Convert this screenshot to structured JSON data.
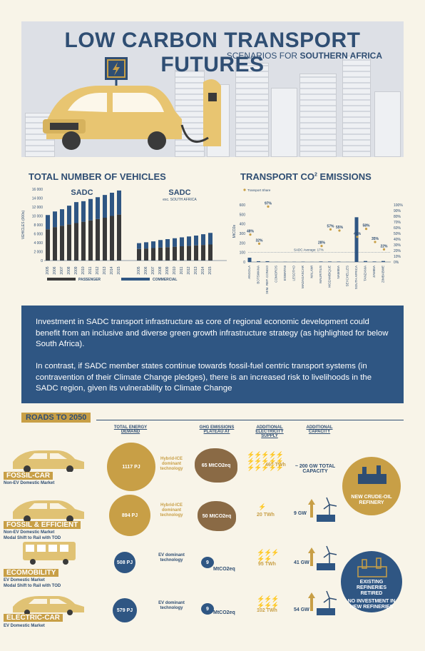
{
  "header": {
    "title": "LOW CARBON TRANSPORT FUTURES",
    "subtitle_prefix": "SCENARIOS FOR ",
    "subtitle_bold": "SOUTHERN AFRICA"
  },
  "vehicles": {
    "title": "TOTAL NUMBER OF VEHICLES",
    "ylabel": "VEHICLES (000s)",
    "yticks": [
      "16 000",
      "14 000",
      "12 000",
      "10 000",
      "8 000",
      "6 000",
      "4 000",
      "2 000",
      "0"
    ],
    "legend_passenger": "PASSENGER",
    "legend_commercial": "COMMERCIAL",
    "sadc_label": "SADC",
    "sadc_ex_label": "SADC",
    "sadc_ex_sub": "exc. SOUTH AFRICA",
    "years": [
      "2005",
      "2006",
      "2007",
      "2008",
      "2009",
      "2010",
      "2011",
      "2012",
      "2013",
      "2014",
      "2015"
    ],
    "sadc_passenger": [
      7000,
      7500,
      7800,
      8100,
      8400,
      8700,
      9000,
      9300,
      9600,
      10000,
      10300
    ],
    "sadc_commercial": [
      3200,
      3500,
      3700,
      4200,
      4700,
      4600,
      4800,
      4900,
      5100,
      5200,
      5400
    ],
    "sadc_ex_passenger": [
      2600,
      2700,
      2800,
      2900,
      3000,
      3100,
      3200,
      3300,
      3400,
      3500,
      3600
    ],
    "sadc_ex_commercial": [
      1300,
      1400,
      1500,
      1700,
      1800,
      1900,
      2000,
      2100,
      2200,
      2400,
      2600
    ]
  },
  "chart_data": {
    "type": "bar",
    "title": "TRANSPORT CO2 EMISSIONS",
    "ylabel": "MtCO2e",
    "legend": "Transport Share",
    "ylim": [
      0,
      600
    ],
    "y2lim": [
      0,
      100
    ],
    "yticks": [
      "600",
      "500",
      "400",
      "300",
      "200",
      "100",
      "0"
    ],
    "y2ticks": [
      "100%",
      "90%",
      "80%",
      "70%",
      "60%",
      "50%",
      "40%",
      "30%",
      "20%",
      "10%",
      "0%"
    ],
    "categories": [
      "ANGOLA",
      "BOTSWANA",
      "DEM. REP. CONGO",
      "COMOROS",
      "ESWATINI",
      "LESOTHO",
      "MADAGASCAR",
      "MALAWI",
      "MAURITIUS",
      "MOZAMBIQUE",
      "NAMIBIA",
      "SEYCHELLES",
      "SOUTH AFRICA",
      "TANZANIA",
      "ZAMBIA",
      "ZIMBABWE"
    ],
    "emissions": [
      45,
      8,
      8,
      1,
      2,
      2,
      3,
      1,
      5,
      5,
      4,
      1,
      470,
      10,
      5,
      10
    ],
    "share_pct": [
      48,
      32,
      97,
      0,
      0,
      0,
      0,
      0,
      28,
      57,
      55,
      0,
      44,
      58,
      35,
      22
    ],
    "share_labels": [
      "48%",
      "32%",
      "97%",
      "",
      "",
      "",
      "",
      "",
      "28%",
      "57%",
      "55%",
      "",
      "44%",
      "58%",
      "35%",
      "22%"
    ],
    "average_label": "SADC Average: 17%"
  },
  "banner": {
    "p1": "Investment in SADC transport infrastructure as core of regional economic development could benefit from an inclusive and diverse green growth infrastructure strategy (as highlighted for below South Africa).",
    "p2": "In contrast, if SADC member states continue towards fossil-fuel centric transport systems (in contravention of their Climate Change pledges), there is an increased risk to livelihoods in the SADC region, given its vulnerability to Climate Change"
  },
  "roads": {
    "title": "ROADS TO 2050",
    "col_energy": "TOTAL ENERGY DEMAND",
    "col_ghg": "GHG EMISSIONS PLATEAU AT",
    "col_elec": "ADDITIONAL ELECTRICITY SUPPLY",
    "col_cap": "ADDITIONAL CAPACITY",
    "scenarios": [
      {
        "name": "FOSSIL-CAR",
        "sub1": "Non-EV Domestic Market",
        "sub2": "",
        "energy": "1117 PJ",
        "tech": "Hybrid-ICE dominant technology",
        "ghg": "65 MtCO2eq",
        "twh": "467 TWh",
        "gw": "~ 200 GW TOTAL CAPACITY"
      },
      {
        "name": "FOSSIL & EFFICIENT",
        "sub1": "Non-EV Domestic Market",
        "sub2": "Modal Shift to Rail with TOD",
        "energy": "894 PJ",
        "tech": "Hybrid-ICE dominant technology",
        "ghg": "50 MtCO2eq",
        "twh": "20 TWh",
        "gw": "9 GW"
      },
      {
        "name": "ECOMOBILITY",
        "sub1": "EV Domestic Market",
        "sub2": "Modal Shift to Rail with TOD",
        "energy": "508 PJ",
        "tech": "EV dominant technology",
        "ghg_num": "9",
        "ghg_unit": "MtCO2eq",
        "twh": "95 TWh",
        "gw": "41 GW"
      },
      {
        "name": "ELECTRIC-CAR",
        "sub1": "EV Domestic Market",
        "sub2": "",
        "energy": "579 PJ",
        "tech": "EV dominant technology",
        "ghg_num": "9",
        "ghg_unit": "MtCO2eq",
        "twh": "102 TWh",
        "gw": "54 GW"
      }
    ],
    "refinery_new": "NEW CRUDE-OIL REFINERY",
    "refinery_retired": "EXISTING REFINERIES RETIRED",
    "refinery_none": "NO INVESTMENT IN NEW REFINERIES"
  },
  "colors": {
    "navy": "#2f5683",
    "gold": "#c89f46",
    "dark": "#3a3a3a",
    "bg": "#f8f4e8"
  }
}
